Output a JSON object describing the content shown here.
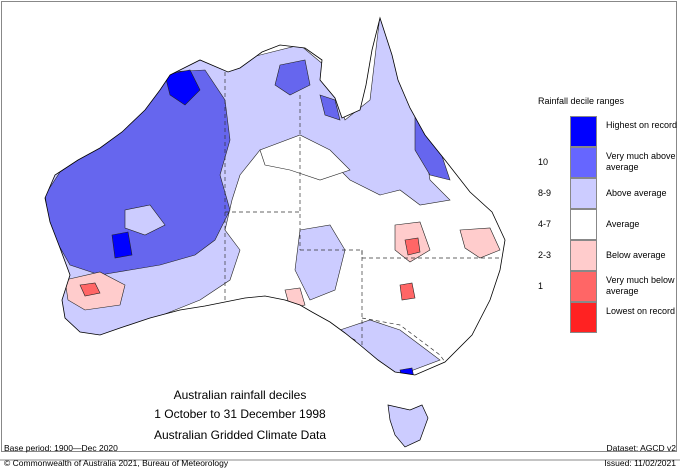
{
  "title": {
    "line1": "Australian rainfall deciles",
    "line2": "1 October to 31 December 1998",
    "line3": "Australian Gridded Climate Data"
  },
  "legend": {
    "title": "Rainfall decile ranges",
    "items": [
      {
        "label": "Highest on record",
        "decile": "",
        "color": "#0000ff"
      },
      {
        "label": "Very much above average",
        "decile": "10",
        "color": "#6666ff"
      },
      {
        "label": "Above average",
        "decile": "8-9",
        "color": "#ccccff"
      },
      {
        "label": "Average",
        "decile": "4-7",
        "color": "#ffffff"
      },
      {
        "label": "Below average",
        "decile": "2-3",
        "color": "#ffcccc"
      },
      {
        "label": "Very much below average",
        "decile": "1",
        "color": "#ff6666"
      },
      {
        "label": "Lowest on record",
        "decile": "",
        "color": "#ff2222"
      }
    ]
  },
  "footer": {
    "base_period": "Base period: 1900—Dec 2020",
    "dataset": "Dataset: AGCD v2",
    "copyright": "© Commonwealth of Australia 2021, Bureau of Meteorology",
    "issued": "Issued: 11/02/2021"
  }
}
